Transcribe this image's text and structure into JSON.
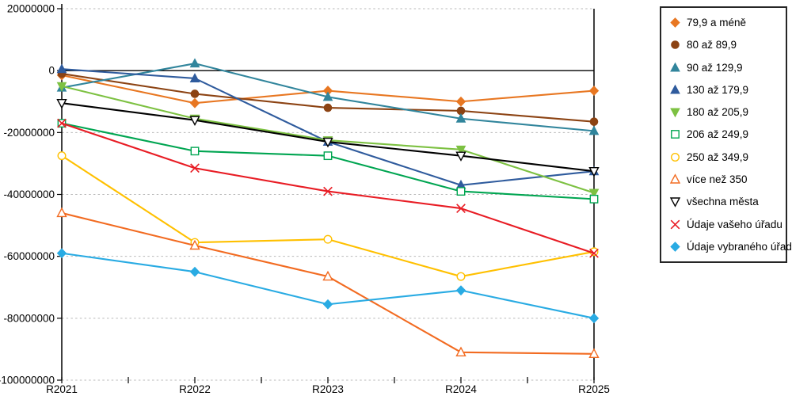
{
  "chart_data": {
    "type": "line",
    "title": "",
    "xlabel": "",
    "ylabel": "",
    "categories": [
      "R2021",
      "R2022",
      "R2023",
      "R2024",
      "R2025"
    ],
    "y_ticks": [
      20000000,
      0,
      -20000000,
      -40000000,
      -60000000,
      -80000000,
      -100000000
    ],
    "ylim": [
      -100000000,
      20000000
    ],
    "grid": "horizontal-dashed",
    "legend_position": "right",
    "series": [
      {
        "name": "79,9 a méně",
        "color": "#E87722",
        "marker": "diamond",
        "open": false,
        "values": [
          -1500000,
          -10500000,
          -6500000,
          -10000000,
          -6500000
        ]
      },
      {
        "name": "80 až 89,9",
        "color": "#8C4313",
        "marker": "circle",
        "open": false,
        "values": [
          -1000000,
          -7500000,
          -12000000,
          -13000000,
          -16500000
        ]
      },
      {
        "name": "90 až 129,9",
        "color": "#31859C",
        "marker": "triangle-up",
        "open": false,
        "values": [
          -5500000,
          2300000,
          -8500000,
          -15500000,
          -19500000
        ]
      },
      {
        "name": "130 až 179,9",
        "color": "#2F5B9D",
        "marker": "triangle-up",
        "open": false,
        "values": [
          500000,
          -2500000,
          -23000000,
          -37000000,
          -32500000
        ]
      },
      {
        "name": "180 až 205,9",
        "color": "#7DC142",
        "marker": "triangle-down",
        "open": false,
        "values": [
          -5000000,
          -15500000,
          -22500000,
          -25500000,
          -39500000
        ]
      },
      {
        "name": "206 až 249,9",
        "color": "#00A551",
        "marker": "square",
        "open": true,
        "values": [
          -17000000,
          -26000000,
          -27500000,
          -39000000,
          -41500000
        ]
      },
      {
        "name": "250 až 349,9",
        "color": "#FFC000",
        "marker": "circle",
        "open": true,
        "values": [
          -27500000,
          -55500000,
          -54500000,
          -66500000,
          -58500000
        ]
      },
      {
        "name": "více než 350",
        "color": "#F26B21",
        "marker": "triangle-up",
        "open": true,
        "values": [
          -46000000,
          -56500000,
          -66500000,
          -91000000,
          -91500000
        ]
      },
      {
        "name": "všechna města",
        "color": "#000000",
        "marker": "triangle-down",
        "open": true,
        "values": [
          -10500000,
          -16000000,
          -23000000,
          -27500000,
          -32500000
        ]
      },
      {
        "name": "Údaje vašeho úřadu",
        "color": "#E81C24",
        "marker": "x",
        "open": true,
        "values": [
          -17000000,
          -31500000,
          -39000000,
          -44500000,
          -59000000
        ]
      },
      {
        "name": "Údaje vybraného úřadu",
        "color": "#29ABE3",
        "marker": "diamond",
        "open": false,
        "values": [
          -59000000,
          -65000000,
          -75500000,
          -71000000,
          -80000000
        ]
      }
    ]
  }
}
